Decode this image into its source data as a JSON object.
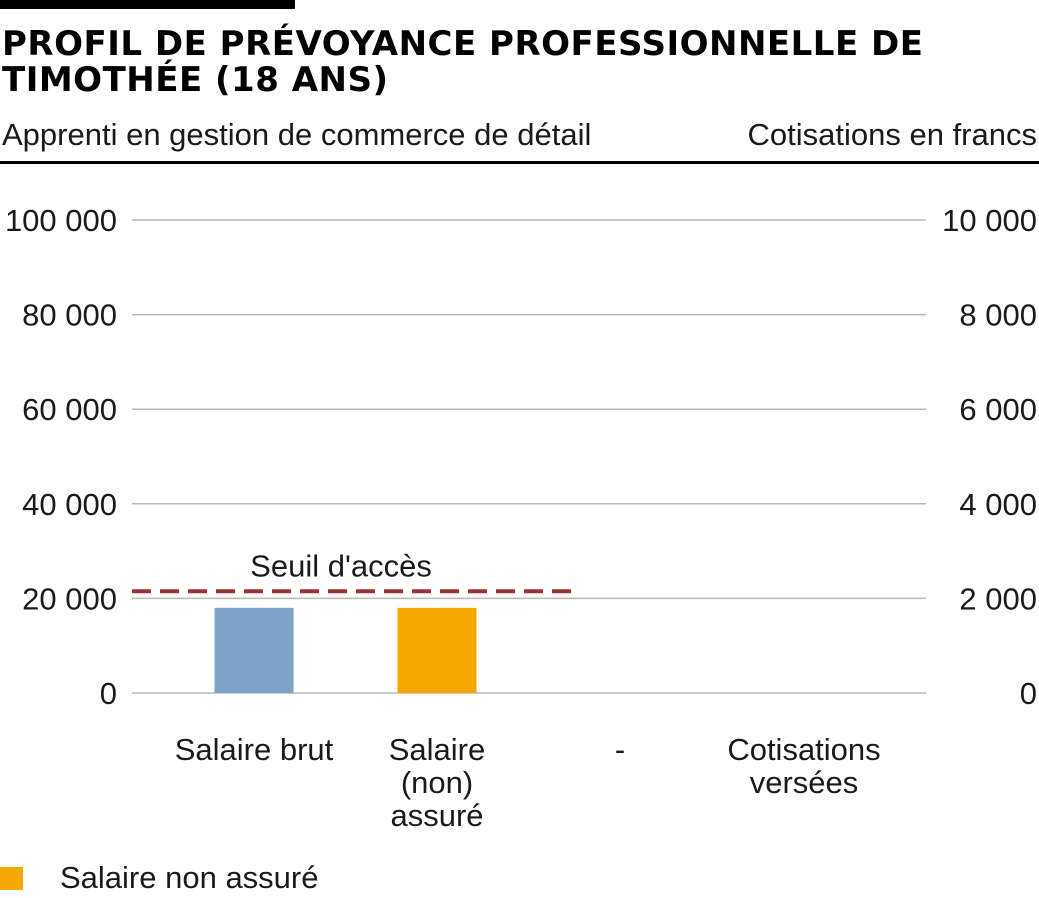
{
  "header": {
    "title_line1": "PROFIL DE PRÉVOYANCE PROFESSIONNELLE DE",
    "title_line2": "TIMOTHÉE (18 ANS)",
    "subtitle_left": "Apprenti en gestion de commerce de détail",
    "subtitle_right": "Cotisations en francs"
  },
  "chart_data": {
    "type": "bar",
    "title": "PROFIL DE PRÉVOYANCE PROFESSIONNELLE DE TIMOTHÉE (18 ANS)",
    "categories": [
      {
        "lines": [
          "Salaire brut"
        ]
      },
      {
        "lines": [
          "Salaire",
          "(non)",
          "assuré"
        ]
      },
      {
        "lines": [
          "-"
        ]
      },
      {
        "lines": [
          "Cotisations",
          "versées"
        ]
      }
    ],
    "series": [
      {
        "values": [
          18000,
          18000,
          null,
          null
        ],
        "colors": [
          "#7ea3c6",
          "#f5a800",
          null,
          null
        ]
      }
    ],
    "ylim": [
      0,
      100000
    ],
    "yticks": [
      0,
      20000,
      40000,
      60000,
      80000,
      100000
    ],
    "ytick_labels": [
      "0",
      "20 000",
      "40 000",
      "60 000",
      "80 000",
      "100 000"
    ],
    "y2lim": [
      0,
      10000
    ],
    "y2tick_labels": [
      "0",
      "2 000",
      "4 000",
      "6 000",
      "8 000",
      "10 000"
    ],
    "threshold": {
      "label": "Seuil d'accès",
      "value": 21510,
      "color": "#993333",
      "style": "dashed",
      "spans_categories": [
        0,
        1
      ]
    },
    "grid": true,
    "gridline_color": "#b8b8b8",
    "legend": [
      {
        "label": "Salaire non assuré",
        "color": "#f5a800"
      }
    ],
    "legend_position": "bottom-left"
  }
}
